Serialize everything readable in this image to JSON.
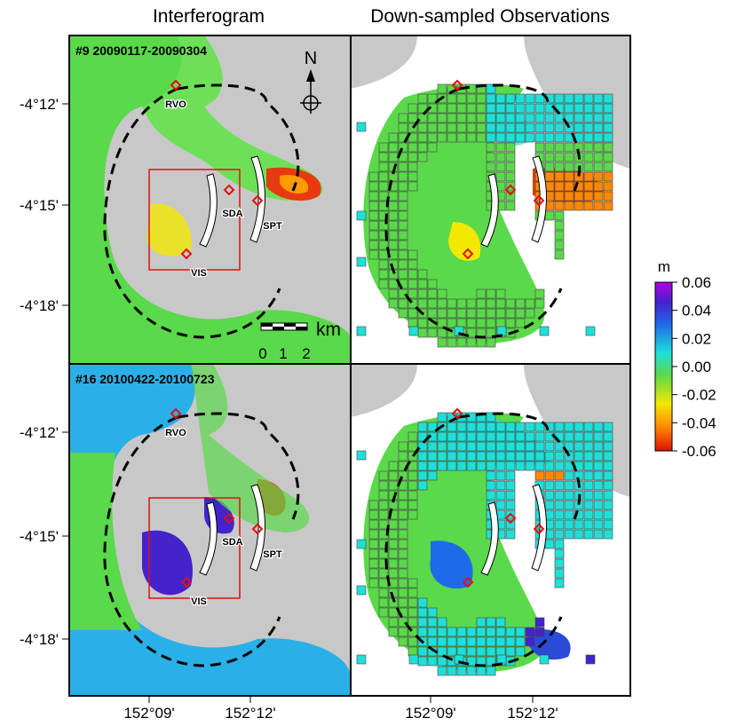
{
  "columns": [
    "Interferogram",
    "Down-sampled Observations"
  ],
  "panels": [
    {
      "title": "#9 20090117-20090304"
    },
    {
      "title": "#16 20100422-20100723"
    }
  ],
  "y_axis": {
    "ticks": [
      "-4°12'",
      "-4°15'",
      "-4°18'"
    ]
  },
  "x_axis": {
    "ticks": [
      "152°09'",
      "152°12'"
    ]
  },
  "north_arrow": "N",
  "scale_bar": {
    "unit": "km",
    "labels": [
      "0",
      "1",
      "2"
    ]
  },
  "sites": [
    "RVO",
    "SDA",
    "SPT",
    "VIS"
  ],
  "colorbar": {
    "unit": "m",
    "ticks": [
      "0.06",
      "0.04",
      "0.02",
      "0.00",
      "-0.02",
      "-0.04",
      "-0.06"
    ],
    "range": [
      -0.06,
      0.06
    ],
    "colors": [
      "#dd1100",
      "#ff8800",
      "#f2e800",
      "#5ad94a",
      "#1ee0d8",
      "#1f6ae8",
      "#4422cc",
      "#b300e6"
    ]
  }
}
